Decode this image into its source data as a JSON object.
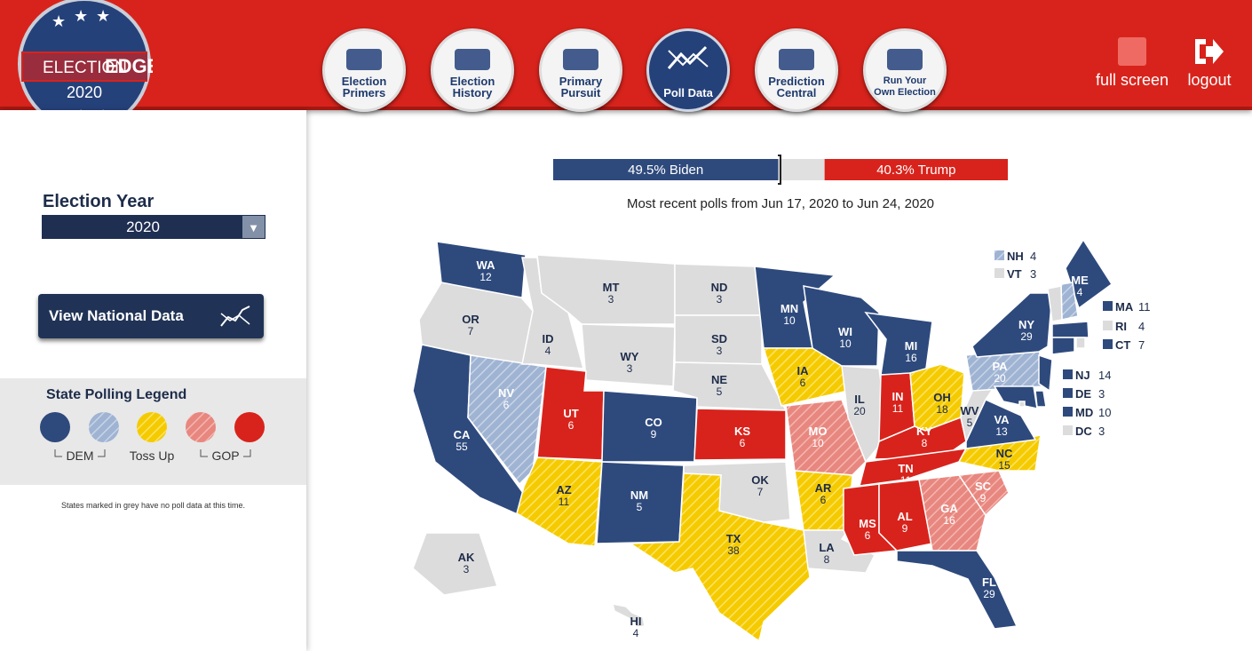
{
  "header": {
    "logo": {
      "word1": "ELECTION",
      "word2": "EDGE",
      "year": "2020"
    },
    "nav": [
      {
        "label": "Election Primers",
        "active": false
      },
      {
        "label": "Election History",
        "active": false
      },
      {
        "label": "Primary Pursuit",
        "active": false
      },
      {
        "label": "Poll Data",
        "active": true
      },
      {
        "label": "Prediction Central",
        "active": false
      },
      {
        "label": "Run Your Own Election",
        "active": false
      }
    ],
    "actions": [
      "full screen",
      "logout"
    ]
  },
  "sidebar": {
    "year_label": "Election Year",
    "year_value": "2020",
    "national_button": "View National Data",
    "legend": {
      "title": "State Polling Legend",
      "dem": "DEM",
      "toss": "Toss Up",
      "gop": "GOP"
    },
    "note": "States marked in grey have no poll data at this time."
  },
  "poll": {
    "biden": 49.5,
    "biden_label": "49.5% Biden",
    "trump": 40.3,
    "trump_label": "40.3% Trump",
    "subtitle": "Most recent polls from Jun 17, 2020 to Jun 24, 2020"
  },
  "map": {
    "states": [
      {
        "abbr": "WA",
        "votes": "12",
        "status": "dem"
      },
      {
        "abbr": "OR",
        "votes": "7",
        "status": "none"
      },
      {
        "abbr": "CA",
        "votes": "55",
        "status": "dem"
      },
      {
        "abbr": "NV",
        "votes": "6",
        "status": "lean-dem"
      },
      {
        "abbr": "ID",
        "votes": "4",
        "status": "none"
      },
      {
        "abbr": "MT",
        "votes": "3",
        "status": "none"
      },
      {
        "abbr": "WY",
        "votes": "3",
        "status": "none"
      },
      {
        "abbr": "UT",
        "votes": "6",
        "status": "gop"
      },
      {
        "abbr": "CO",
        "votes": "9",
        "status": "dem"
      },
      {
        "abbr": "AZ",
        "votes": "11",
        "status": "toss"
      },
      {
        "abbr": "NM",
        "votes": "5",
        "status": "dem"
      },
      {
        "abbr": "ND",
        "votes": "3",
        "status": "none"
      },
      {
        "abbr": "SD",
        "votes": "3",
        "status": "none"
      },
      {
        "abbr": "NE",
        "votes": "5",
        "status": "none"
      },
      {
        "abbr": "KS",
        "votes": "6",
        "status": "gop"
      },
      {
        "abbr": "OK",
        "votes": "7",
        "status": "none"
      },
      {
        "abbr": "TX",
        "votes": "38",
        "status": "toss"
      },
      {
        "abbr": "MN",
        "votes": "10",
        "status": "dem"
      },
      {
        "abbr": "IA",
        "votes": "6",
        "status": "toss"
      },
      {
        "abbr": "MO",
        "votes": "10",
        "status": "lean-gop"
      },
      {
        "abbr": "AR",
        "votes": "6",
        "status": "toss"
      },
      {
        "abbr": "LA",
        "votes": "8",
        "status": "none"
      },
      {
        "abbr": "WI",
        "votes": "10",
        "status": "dem"
      },
      {
        "abbr": "IL",
        "votes": "20",
        "status": "none"
      },
      {
        "abbr": "MI",
        "votes": "16",
        "status": "dem"
      },
      {
        "abbr": "IN",
        "votes": "11",
        "status": "gop"
      },
      {
        "abbr": "OH",
        "votes": "18",
        "status": "toss"
      },
      {
        "abbr": "KY",
        "votes": "8",
        "status": "gop"
      },
      {
        "abbr": "TN",
        "votes": "11",
        "status": "gop"
      },
      {
        "abbr": "MS",
        "votes": "6",
        "status": "gop"
      },
      {
        "abbr": "AL",
        "votes": "9",
        "status": "gop"
      },
      {
        "abbr": "GA",
        "votes": "16",
        "status": "lean-gop"
      },
      {
        "abbr": "FL",
        "votes": "29",
        "status": "dem"
      },
      {
        "abbr": "SC",
        "votes": "9",
        "status": "lean-gop"
      },
      {
        "abbr": "NC",
        "votes": "15",
        "status": "toss"
      },
      {
        "abbr": "VA",
        "votes": "13",
        "status": "dem"
      },
      {
        "abbr": "WV",
        "votes": "5",
        "status": "none"
      },
      {
        "abbr": "PA",
        "votes": "20",
        "status": "lean-dem"
      },
      {
        "abbr": "NY",
        "votes": "29",
        "status": "dem"
      },
      {
        "abbr": "ME",
        "votes": "4",
        "status": "dem"
      },
      {
        "abbr": "NH",
        "votes": "4",
        "status": "lean-dem"
      },
      {
        "abbr": "VT",
        "votes": "3",
        "status": "none"
      },
      {
        "abbr": "MA",
        "votes": "11",
        "status": "dem"
      },
      {
        "abbr": "RI",
        "votes": "4",
        "status": "none"
      },
      {
        "abbr": "CT",
        "votes": "7",
        "status": "dem"
      },
      {
        "abbr": "NJ",
        "votes": "14",
        "status": "dem"
      },
      {
        "abbr": "DE",
        "votes": "3",
        "status": "dem"
      },
      {
        "abbr": "MD",
        "votes": "10",
        "status": "dem"
      },
      {
        "abbr": "DC",
        "votes": "3",
        "status": "none"
      },
      {
        "abbr": "AK",
        "votes": "3",
        "status": "none"
      },
      {
        "abbr": "HI",
        "votes": "4",
        "status": "none"
      }
    ]
  }
}
